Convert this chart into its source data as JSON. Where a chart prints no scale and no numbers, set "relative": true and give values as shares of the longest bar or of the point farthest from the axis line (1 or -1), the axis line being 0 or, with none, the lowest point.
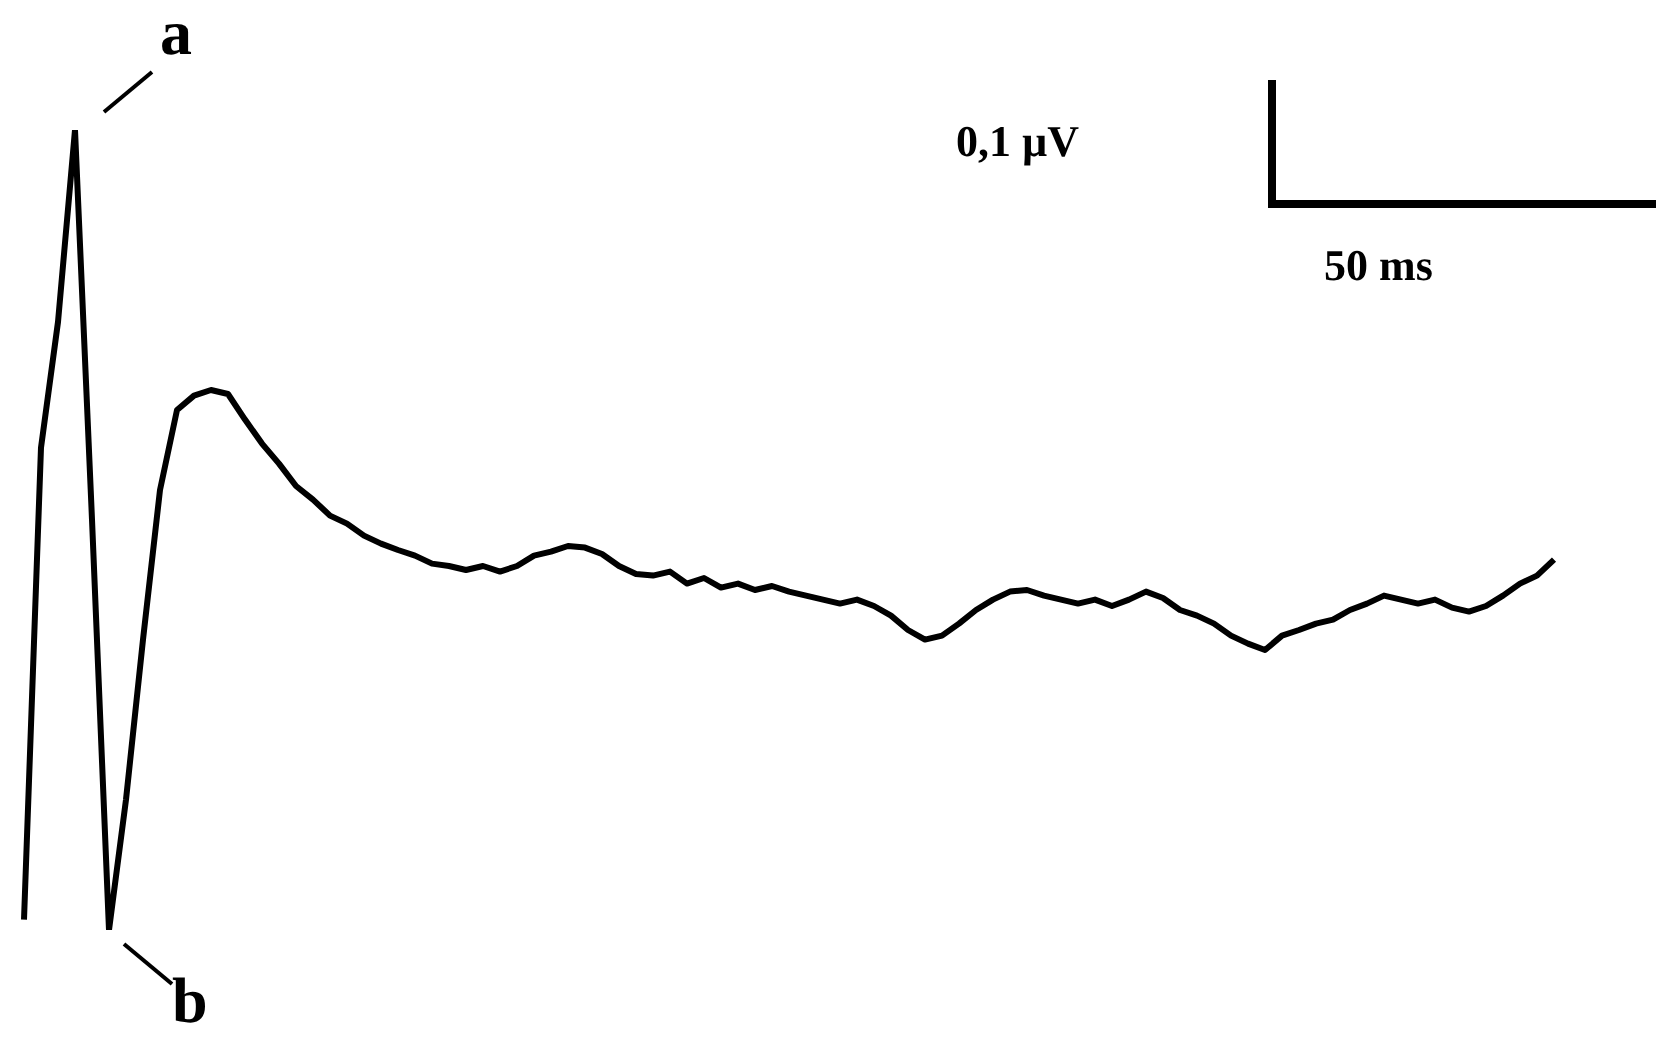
{
  "chart_data": {
    "type": "line",
    "relative": true,
    "color": "#000000",
    "line_style": "solid",
    "marker": "none",
    "legend": false,
    "categories": [
      null,
      null,
      null,
      null,
      null,
      null,
      null,
      null,
      null,
      null,
      null,
      null,
      null,
      null,
      null,
      null,
      null,
      null,
      null,
      null,
      null,
      null,
      null,
      null,
      null,
      null,
      null,
      null,
      null,
      null,
      null,
      null,
      null,
      null,
      null,
      null,
      null,
      null,
      null,
      null,
      null,
      null,
      null,
      null,
      null,
      null,
      null,
      null,
      null,
      null,
      null,
      null,
      null,
      null,
      null,
      null,
      null,
      null,
      null,
      null,
      null,
      null,
      null,
      null,
      null,
      null,
      null,
      null,
      null,
      null,
      null,
      null,
      null,
      null,
      null,
      null,
      null,
      null,
      null,
      null,
      null,
      null,
      null,
      null,
      null,
      null,
      null,
      null,
      null,
      null,
      null
    ],
    "values": [
      0.013,
      0.603,
      0.76,
      1,
      0.513,
      0,
      0.163,
      0.363,
      0.55,
      0.65,
      0.668,
      0.675,
      0.67,
      0.638,
      0.608,
      0.583,
      0.555,
      0.538,
      0.518,
      0.508,
      0.493,
      0.483,
      0.475,
      0.468,
      0.458,
      0.455,
      0.45,
      0.455,
      0.448,
      0.455,
      0.468,
      0.473,
      0.48,
      0.478,
      0.47,
      0.455,
      0.445,
      0.443,
      0.448,
      0.433,
      0.44,
      0.428,
      0.433,
      0.425,
      0.43,
      0.423,
      0.418,
      0.413,
      0.408,
      0.413,
      0.405,
      0.393,
      0.375,
      0.363,
      0.368,
      0.383,
      0.4,
      0.413,
      0.423,
      0.425,
      0.418,
      0.413,
      0.408,
      0.413,
      0.405,
      0.413,
      0.423,
      0.415,
      0.4,
      0.393,
      0.383,
      0.368,
      0.358,
      0.35,
      0.368,
      0.375,
      0.383,
      0.388,
      0.4,
      0.408,
      0.418,
      0.413,
      0.408,
      0.413,
      0.403,
      0.398,
      0.405,
      0.418,
      0.433,
      0.443,
      0.463
    ],
    "annotations": [
      "a",
      "b",
      "0,1 µV",
      "50 ms"
    ]
  }
}
